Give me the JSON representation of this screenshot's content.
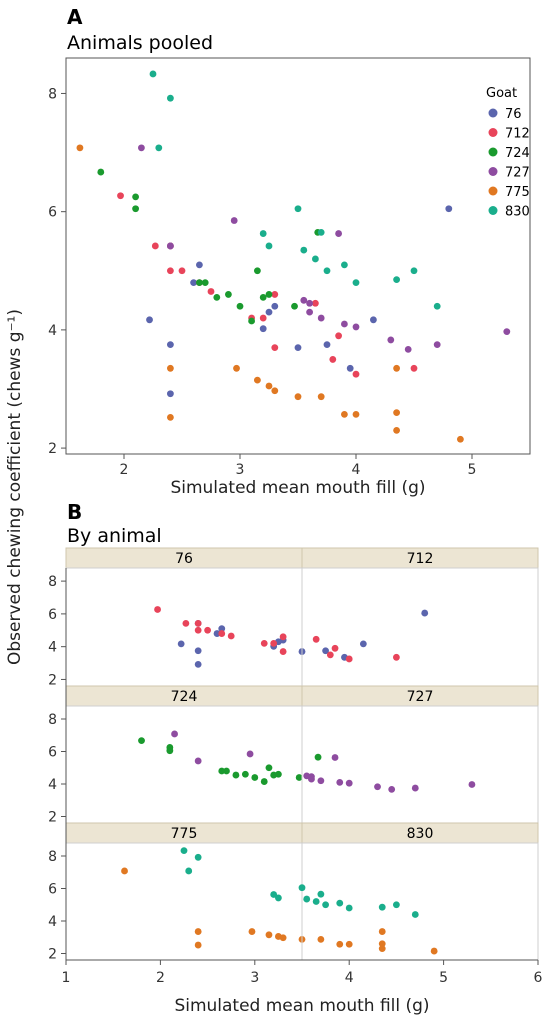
{
  "colors": {
    "76": "#5b65ad",
    "712": "#e8445a",
    "724": "#1a9a2e",
    "727": "#8e4ca0",
    "775": "#e07822",
    "830": "#1aae8c"
  },
  "panel_a": {
    "letter": "A",
    "title": "Animals pooled",
    "xlabel": "Simulated mean mouth fill (g)",
    "ylabel": "Observed chewing coefficient (chews g⁻¹)",
    "legend_title": "Goat"
  },
  "panel_b": {
    "letter": "B",
    "title": "By animal",
    "xlabel": "Simulated mean mouth fill (g)"
  },
  "chart_data": [
    {
      "type": "scatter",
      "title": "Animals pooled",
      "xlabel": "Simulated mean mouth fill (g)",
      "ylabel": "Observed chewing coefficient (chews g⁻¹)",
      "xlim": [
        1.5,
        5.5
      ],
      "ylim": [
        1.9,
        8.6
      ],
      "xticks": [
        2,
        3,
        4,
        5
      ],
      "yticks": [
        2,
        4,
        6,
        8
      ],
      "legend": "top-right",
      "legend_title": "Goat",
      "series": [
        {
          "name": "76",
          "points": [
            [
              2.22,
              4.17
            ],
            [
              2.4,
              3.75
            ],
            [
              2.4,
              2.92
            ],
            [
              2.4,
              5.42
            ],
            [
              2.65,
              5.1
            ],
            [
              2.6,
              4.8
            ],
            [
              3.2,
              4.02
            ],
            [
              3.3,
              4.4
            ],
            [
              3.25,
              4.3
            ],
            [
              3.5,
              3.7
            ],
            [
              3.75,
              3.75
            ],
            [
              3.95,
              3.35
            ],
            [
              4.15,
              4.17
            ],
            [
              4.8,
              6.05
            ]
          ]
        },
        {
          "name": "712",
          "points": [
            [
              1.97,
              6.27
            ],
            [
              2.27,
              5.42
            ],
            [
              2.4,
              5.42
            ],
            [
              2.4,
              5.0
            ],
            [
              2.5,
              5.0
            ],
            [
              2.65,
              4.8
            ],
            [
              2.75,
              4.65
            ],
            [
              3.1,
              4.2
            ],
            [
              3.2,
              4.2
            ],
            [
              3.3,
              4.6
            ],
            [
              3.3,
              3.7
            ],
            [
              3.65,
              4.45
            ],
            [
              3.8,
              3.5
            ],
            [
              3.85,
              3.9
            ],
            [
              4.0,
              3.25
            ],
            [
              4.5,
              3.35
            ]
          ]
        },
        {
          "name": "724",
          "points": [
            [
              1.8,
              6.67
            ],
            [
              2.1,
              6.25
            ],
            [
              2.1,
              6.05
            ],
            [
              2.65,
              4.8
            ],
            [
              2.7,
              4.8
            ],
            [
              2.8,
              4.55
            ],
            [
              2.9,
              4.6
            ],
            [
              3.0,
              4.4
            ],
            [
              3.1,
              4.15
            ],
            [
              3.15,
              5.0
            ],
            [
              3.2,
              4.55
            ],
            [
              3.25,
              4.6
            ],
            [
              3.47,
              4.4
            ],
            [
              3.67,
              5.65
            ]
          ]
        },
        {
          "name": "727",
          "points": [
            [
              2.15,
              7.08
            ],
            [
              2.4,
              5.42
            ],
            [
              2.95,
              5.85
            ],
            [
              3.55,
              4.5
            ],
            [
              3.6,
              4.45
            ],
            [
              3.6,
              4.3
            ],
            [
              3.7,
              4.2
            ],
            [
              3.85,
              5.63
            ],
            [
              3.9,
              4.1
            ],
            [
              4.0,
              4.05
            ],
            [
              4.3,
              3.83
            ],
            [
              4.45,
              3.67
            ],
            [
              4.7,
              3.75
            ],
            [
              5.3,
              3.97
            ]
          ]
        },
        {
          "name": "775",
          "points": [
            [
              1.62,
              7.08
            ],
            [
              2.4,
              3.35
            ],
            [
              2.4,
              2.52
            ],
            [
              2.97,
              3.35
            ],
            [
              3.15,
              3.15
            ],
            [
              3.25,
              3.05
            ],
            [
              3.3,
              2.97
            ],
            [
              3.5,
              2.87
            ],
            [
              3.7,
              2.87
            ],
            [
              3.9,
              2.57
            ],
            [
              4.0,
              2.57
            ],
            [
              4.35,
              3.35
            ],
            [
              4.35,
              2.6
            ],
            [
              4.35,
              2.3
            ],
            [
              4.9,
              2.15
            ]
          ]
        },
        {
          "name": "830",
          "points": [
            [
              2.25,
              8.33
            ],
            [
              2.3,
              7.08
            ],
            [
              2.4,
              7.92
            ],
            [
              3.2,
              5.63
            ],
            [
              3.25,
              5.42
            ],
            [
              3.5,
              6.05
            ],
            [
              3.55,
              5.35
            ],
            [
              3.65,
              5.2
            ],
            [
              3.7,
              5.65
            ],
            [
              3.75,
              5.0
            ],
            [
              3.9,
              5.1
            ],
            [
              4.0,
              4.8
            ],
            [
              4.35,
              4.85
            ],
            [
              4.5,
              5.0
            ],
            [
              4.7,
              4.4
            ]
          ]
        }
      ]
    },
    {
      "type": "scatter",
      "title": "By animal",
      "xlabel": "Simulated mean mouth fill (g)",
      "ylabel": "Observed chewing coefficient (chews g⁻¹)",
      "xlim": [
        1,
        6
      ],
      "ylim": [
        1.6,
        8.8
      ],
      "xticks": [
        1,
        2,
        3,
        4,
        5,
        6
      ],
      "yticks": [
        2,
        4,
        6,
        8
      ],
      "facets": [
        "76",
        "712",
        "724",
        "727",
        "775",
        "830"
      ]
    }
  ]
}
